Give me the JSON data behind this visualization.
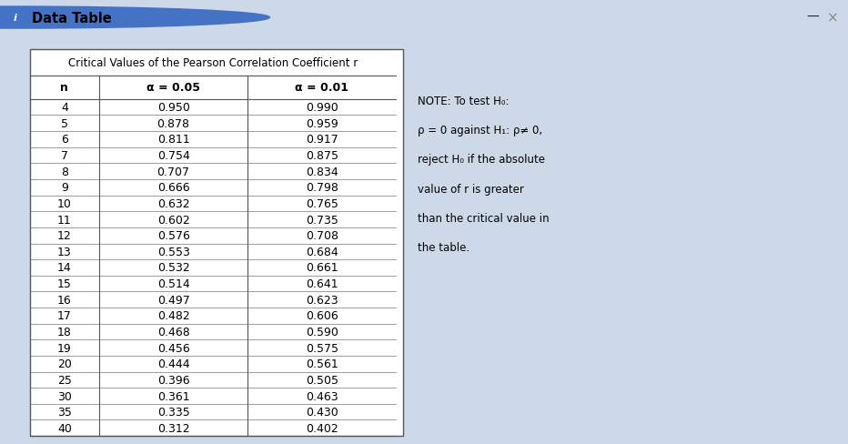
{
  "title": "Critical Values of the Pearson Correlation Coefficient r",
  "header_title": "Data Table",
  "col_headers": [
    "n",
    "α = 0.05",
    "α = 0.01"
  ],
  "note_lines": [
    "NOTE: To test H₀:",
    "ρ = 0 against H₁: ρ 0,",
    "reject H₀ if the absolute",
    "value of r is greater",
    "than the critical value in",
    "the table."
  ],
  "rows": [
    [
      "4",
      "0.950",
      "0.990"
    ],
    [
      "5",
      "0.878",
      "0.959"
    ],
    [
      "6",
      "0.811",
      "0.917"
    ],
    [
      "7",
      "0.754",
      "0.875"
    ],
    [
      "8",
      "0.707",
      "0.834"
    ],
    [
      "9",
      "0.666",
      "0.798"
    ],
    [
      "10",
      "0.632",
      "0.765"
    ],
    [
      "11",
      "0.602",
      "0.735"
    ],
    [
      "12",
      "0.576",
      "0.708"
    ],
    [
      "13",
      "0.553",
      "0.684"
    ],
    [
      "14",
      "0.532",
      "0.661"
    ],
    [
      "15",
      "0.514",
      "0.641"
    ],
    [
      "16",
      "0.497",
      "0.623"
    ],
    [
      "17",
      "0.482",
      "0.606"
    ],
    [
      "18",
      "0.468",
      "0.590"
    ],
    [
      "19",
      "0.456",
      "0.575"
    ],
    [
      "20",
      "0.444",
      "0.561"
    ],
    [
      "25",
      "0.396",
      "0.505"
    ],
    [
      "30",
      "0.361",
      "0.463"
    ],
    [
      "35",
      "0.335",
      "0.430"
    ],
    [
      "40",
      "0.312",
      "0.402"
    ]
  ],
  "outer_bg": "#cdd9e8",
  "header_bg": "#dce6f1",
  "separator_color": "#a0b4c8",
  "content_bg": "#dce6f1",
  "table_bg": "#ffffff",
  "border_color": "#555555",
  "text_color": "#000000",
  "header_text_color": "#000000",
  "info_icon_color": "#4472c4",
  "minus_color": "#222222",
  "x_color": "#888888",
  "title_fontsize": 8.5,
  "header_fontsize": 9.0,
  "cell_fontsize": 9.0,
  "note_fontsize": 8.5,
  "topbar_fontsize": 10.5,
  "note_line2": "ρ = 0 against H₁: ρ ≠ 0,"
}
